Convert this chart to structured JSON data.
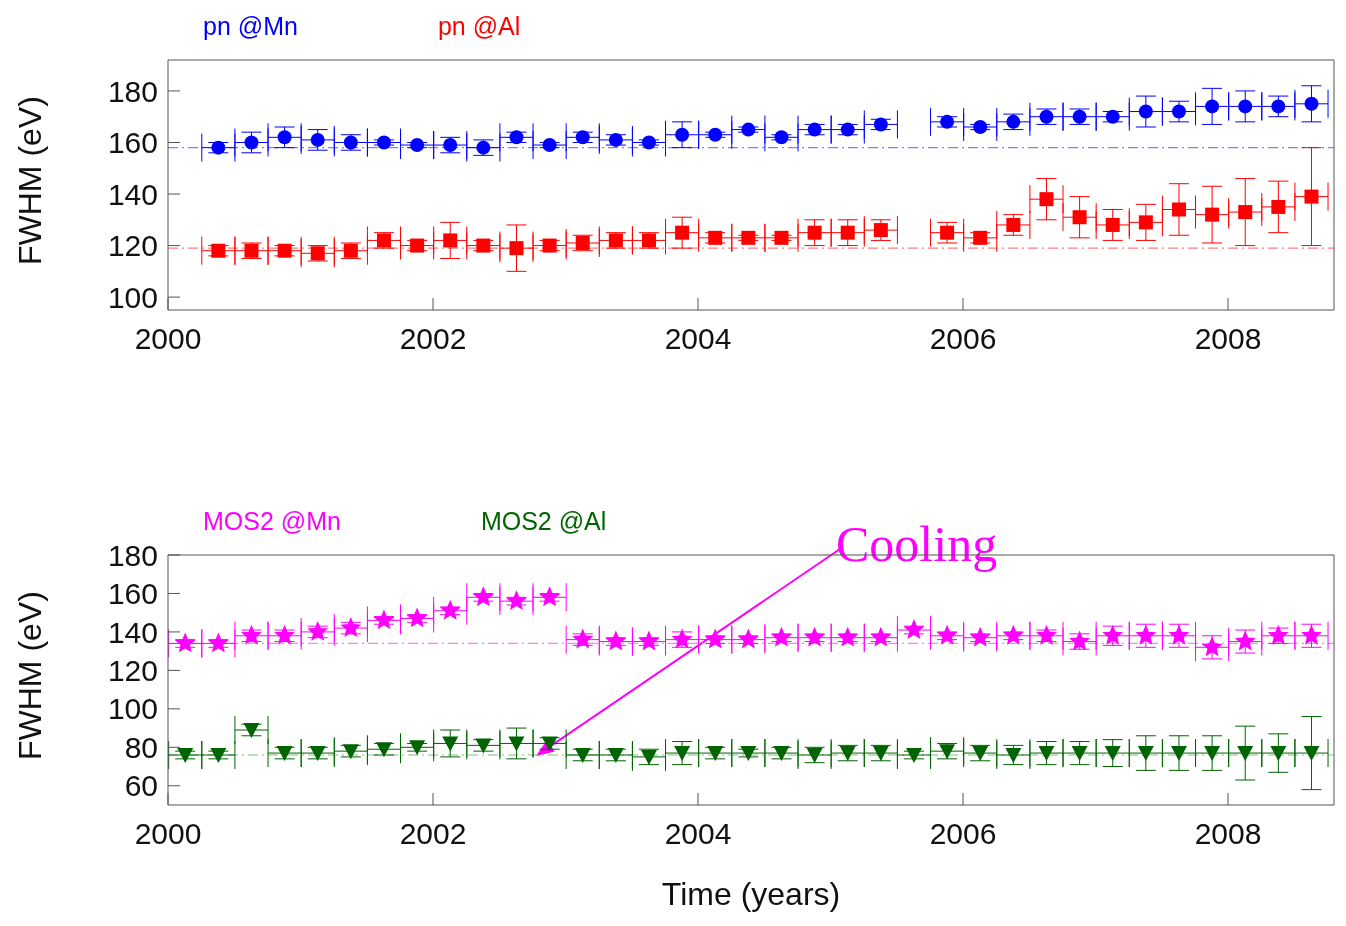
{
  "chart_data": [
    {
      "type": "scatter",
      "ylabel": "FWHM (eV)",
      "xlim": [
        2000,
        2008.8
      ],
      "xticks": [
        2000,
        2002,
        2004,
        2006,
        2008
      ],
      "ylim": [
        95,
        192
      ],
      "yticks": [
        100,
        120,
        140,
        160,
        180
      ],
      "legend": "top left",
      "ref_lines": [
        {
          "axis": "y",
          "value": 158,
          "color": "#8080ff",
          "line_style": "dashed"
        },
        {
          "axis": "y",
          "value": 119,
          "color": "#ff8080",
          "line_style": "dashed"
        }
      ],
      "series": [
        {
          "name": "pn @Mn",
          "color": "#0000ff",
          "marker": "circle",
          "x": [
            2000.38,
            2000.63,
            2000.88,
            2001.13,
            2001.38,
            2001.63,
            2001.88,
            2002.13,
            2002.38,
            2002.63,
            2002.88,
            2003.13,
            2003.38,
            2003.63,
            2003.88,
            2004.13,
            2004.38,
            2004.63,
            2004.88,
            2005.13,
            2005.38,
            2005.88,
            2006.13,
            2006.38,
            2006.63,
            2006.88,
            2007.13,
            2007.38,
            2007.63,
            2007.88,
            2008.13,
            2008.38,
            2008.63
          ],
          "values": [
            158,
            160,
            162,
            161,
            160,
            160,
            159,
            159,
            158,
            162,
            159,
            162,
            161,
            160,
            163,
            163,
            165,
            162,
            165,
            165,
            167,
            168,
            166,
            168,
            170,
            170,
            170,
            172,
            172,
            174,
            174,
            174,
            175
          ],
          "errors": [
            2,
            4,
            4,
            4,
            3,
            1,
            1,
            3,
            3,
            2,
            1,
            2,
            2,
            1,
            5,
            1,
            1,
            1,
            2,
            2,
            2,
            2,
            1,
            3,
            3,
            3,
            2,
            6,
            4,
            7,
            6,
            4,
            7
          ],
          "xerrors": [
            0.125,
            0.125,
            0.125,
            0.125,
            0.125,
            0.125,
            0.125,
            0.125,
            0.125,
            0.125,
            0.125,
            0.125,
            0.125,
            0.125,
            0.125,
            0.125,
            0.125,
            0.125,
            0.125,
            0.125,
            0.125,
            0.125,
            0.125,
            0.125,
            0.125,
            0.125,
            0.125,
            0.125,
            0.125,
            0.125,
            0.125,
            0.125,
            0.125
          ]
        },
        {
          "name": "pn @Al",
          "color": "#ff0000",
          "marker": "square",
          "x": [
            2000.38,
            2000.63,
            2000.88,
            2001.13,
            2001.38,
            2001.63,
            2001.88,
            2002.13,
            2002.38,
            2002.63,
            2002.88,
            2003.13,
            2003.38,
            2003.63,
            2003.88,
            2004.13,
            2004.38,
            2004.63,
            2004.88,
            2005.13,
            2005.38,
            2005.88,
            2006.13,
            2006.38,
            2006.63,
            2006.88,
            2007.13,
            2007.38,
            2007.63,
            2007.88,
            2008.13,
            2008.38,
            2008.63
          ],
          "values": [
            118,
            118,
            118,
            117,
            118,
            122,
            120,
            122,
            120,
            119,
            120,
            121,
            122,
            122,
            125,
            123,
            123,
            123,
            125,
            125,
            126,
            125,
            123,
            128,
            138,
            131,
            128,
            129,
            134,
            132,
            133,
            135,
            139
          ],
          "errors": [
            2,
            3,
            2,
            3,
            3,
            3,
            2,
            7,
            2,
            9,
            2,
            3,
            3,
            3,
            6,
            2,
            1,
            1,
            5,
            5,
            4,
            4,
            2,
            4,
            8,
            8,
            6,
            7,
            10,
            11,
            13,
            10,
            19
          ],
          "xerrors": [
            0.125,
            0.125,
            0.125,
            0.125,
            0.125,
            0.125,
            0.125,
            0.125,
            0.125,
            0.125,
            0.125,
            0.125,
            0.125,
            0.125,
            0.125,
            0.125,
            0.125,
            0.125,
            0.125,
            0.125,
            0.125,
            0.125,
            0.125,
            0.125,
            0.125,
            0.125,
            0.125,
            0.125,
            0.125,
            0.125,
            0.125,
            0.125,
            0.125
          ]
        }
      ]
    },
    {
      "type": "scatter",
      "ylabel": "FWHM (eV)",
      "xlabel": "Time (years)",
      "xlim": [
        2000,
        2008.8
      ],
      "xticks": [
        2000,
        2002,
        2004,
        2006,
        2008
      ],
      "ylim": [
        50,
        180
      ],
      "yticks": [
        60,
        80,
        100,
        120,
        140,
        160,
        180
      ],
      "legend": "top left",
      "annotations": [
        "Cooling"
      ],
      "ref_lines": [
        {
          "axis": "y",
          "value": 134,
          "color": "#ff80ff",
          "line_style": "dashed"
        },
        {
          "axis": "y",
          "value": 76,
          "color": "#80c080",
          "line_style": "dashed"
        }
      ],
      "series": [
        {
          "name": "MOS2 @Mn",
          "color": "#ff00ff",
          "marker": "star",
          "x": [
            2000.13,
            2000.38,
            2000.63,
            2000.88,
            2001.13,
            2001.38,
            2001.63,
            2001.88,
            2002.13,
            2002.38,
            2002.63,
            2002.88,
            2003.13,
            2003.38,
            2003.63,
            2003.88,
            2004.13,
            2004.38,
            2004.63,
            2004.88,
            2005.13,
            2005.38,
            2005.63,
            2005.88,
            2006.13,
            2006.38,
            2006.63,
            2006.88,
            2007.13,
            2007.38,
            2007.63,
            2007.88,
            2008.13,
            2008.38,
            2008.63
          ],
          "values": [
            134,
            134,
            138,
            138,
            140,
            142,
            146,
            147,
            151,
            158,
            156,
            158,
            136,
            135,
            135,
            136,
            136,
            136,
            137,
            137,
            137,
            137,
            141,
            138,
            137,
            138,
            138,
            135,
            138,
            138,
            138,
            132,
            135,
            138,
            138
          ],
          "errors": [
            2,
            2,
            3,
            3,
            3,
            3,
            2,
            2,
            2,
            2,
            2,
            2,
            3,
            2,
            2,
            4,
            2,
            2,
            2,
            2,
            2,
            2,
            2,
            2,
            2,
            2,
            3,
            4,
            5,
            6,
            6,
            6,
            6,
            4,
            6
          ],
          "xerrors": [
            0.125,
            0.125,
            0.125,
            0.125,
            0.125,
            0.125,
            0.125,
            0.125,
            0.125,
            0.125,
            0.125,
            0.125,
            0.125,
            0.125,
            0.125,
            0.125,
            0.125,
            0.125,
            0.125,
            0.125,
            0.125,
            0.125,
            0.125,
            0.125,
            0.125,
            0.125,
            0.125,
            0.125,
            0.125,
            0.125,
            0.125,
            0.125,
            0.125,
            0.125,
            0.125
          ]
        },
        {
          "name": "MOS2 @Al",
          "color": "#006400",
          "marker": "triangle",
          "x": [
            2000.13,
            2000.38,
            2000.63,
            2000.88,
            2001.13,
            2001.38,
            2001.63,
            2001.88,
            2002.13,
            2002.38,
            2002.63,
            2002.88,
            2003.13,
            2003.38,
            2003.63,
            2003.88,
            2004.13,
            2004.38,
            2004.63,
            2004.88,
            2005.13,
            2005.38,
            2005.63,
            2005.88,
            2006.13,
            2006.38,
            2006.63,
            2006.88,
            2007.13,
            2007.38,
            2007.63,
            2007.88,
            2008.13,
            2008.38,
            2008.63
          ],
          "values": [
            76,
            76,
            89,
            77,
            77,
            78,
            79,
            80,
            82,
            81,
            82,
            82,
            76,
            76,
            75,
            77,
            77,
            77,
            77,
            76,
            77,
            77,
            76,
            78,
            77,
            76,
            77,
            77,
            77,
            77,
            77,
            77,
            77,
            77,
            77
          ],
          "errors": [
            2,
            2,
            3,
            3,
            3,
            3,
            3,
            2,
            7,
            3,
            8,
            3,
            3,
            3,
            4,
            6,
            3,
            2,
            3,
            4,
            4,
            4,
            2,
            4,
            4,
            5,
            6,
            6,
            7,
            9,
            9,
            9,
            14,
            10,
            19
          ],
          "xerrors": [
            0.125,
            0.125,
            0.125,
            0.125,
            0.125,
            0.125,
            0.125,
            0.125,
            0.125,
            0.125,
            0.125,
            0.125,
            0.125,
            0.125,
            0.125,
            0.125,
            0.125,
            0.125,
            0.125,
            0.125,
            0.125,
            0.125,
            0.125,
            0.125,
            0.125,
            0.125,
            0.125,
            0.125,
            0.125,
            0.125,
            0.125,
            0.125,
            0.125,
            0.125,
            0.125
          ]
        }
      ]
    }
  ]
}
